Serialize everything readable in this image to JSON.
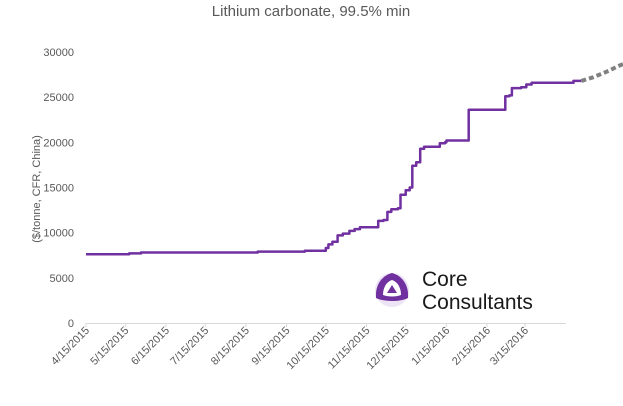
{
  "chart_data": {
    "type": "line",
    "title": "Lithium carbonate, 99.5% min",
    "xlabel": "",
    "ylabel": "($/tonne, CFR, China)",
    "ylim": [
      0,
      30000
    ],
    "y_ticks": [
      "0",
      "5000",
      "10000",
      "15000",
      "20000",
      "25000",
      "30000"
    ],
    "x_ticks": [
      "4/15/2015",
      "5/15/2015",
      "6/15/2015",
      "7/15/2015",
      "8/15/2015",
      "9/15/2015",
      "10/15/2015",
      "11/15/2015",
      "12/15/2015",
      "1/15/2016",
      "2/15/2016",
      "3/15/2016"
    ],
    "grid": false,
    "series": [
      {
        "style": "solid",
        "color": "#7030a0",
        "points": [
          [
            "2015-04-15",
            7600
          ],
          [
            "2015-05-17",
            7600
          ],
          [
            "2015-05-18",
            7700
          ],
          [
            "2015-05-26",
            7700
          ],
          [
            "2015-05-27",
            7800
          ],
          [
            "2015-08-23",
            7800
          ],
          [
            "2015-08-24",
            7900
          ],
          [
            "2015-09-28",
            7900
          ],
          [
            "2015-09-29",
            8000
          ],
          [
            "2015-10-10",
            8000
          ],
          [
            "2015-10-15",
            8300
          ],
          [
            "2015-10-17",
            8700
          ],
          [
            "2015-10-20",
            9000
          ],
          [
            "2015-10-24",
            9700
          ],
          [
            "2015-10-28",
            9900
          ],
          [
            "2015-11-02",
            10200
          ],
          [
            "2015-11-06",
            10400
          ],
          [
            "2015-11-10",
            10600
          ],
          [
            "2015-11-21",
            10600
          ],
          [
            "2015-11-24",
            11300
          ],
          [
            "2015-11-28",
            11400
          ],
          [
            "2015-12-01",
            12300
          ],
          [
            "2015-12-04",
            12600
          ],
          [
            "2015-12-09",
            12700
          ],
          [
            "2015-12-11",
            14200
          ],
          [
            "2015-12-15",
            14700
          ],
          [
            "2015-12-18",
            15000
          ],
          [
            "2015-12-20",
            17400
          ],
          [
            "2015-12-23",
            17800
          ],
          [
            "2015-12-26",
            19300
          ],
          [
            "2015-12-29",
            19500
          ],
          [
            "2016-01-08",
            19500
          ],
          [
            "2016-01-10",
            19900
          ],
          [
            "2016-01-14",
            20000
          ],
          [
            "2016-01-15",
            20200
          ],
          [
            "2016-01-30",
            20200
          ],
          [
            "2016-02-01",
            23600
          ],
          [
            "2016-02-26",
            23600
          ],
          [
            "2016-02-29",
            25100
          ],
          [
            "2016-03-03",
            25200
          ],
          [
            "2016-03-05",
            26000
          ],
          [
            "2016-03-12",
            26100
          ],
          [
            "2016-03-16",
            26400
          ],
          [
            "2016-03-20",
            26600
          ],
          [
            "2016-04-19",
            26600
          ],
          [
            "2016-04-21",
            26800
          ],
          [
            "2016-04-27",
            26800
          ]
        ]
      },
      {
        "style": "dashed",
        "color": "#808080",
        "points": [
          [
            "2016-04-27",
            26800
          ],
          [
            "2016-05-06",
            27200
          ],
          [
            "2016-05-16",
            27800
          ],
          [
            "2016-05-26",
            28500
          ],
          [
            "2016-06-05",
            29100
          ],
          [
            "2016-06-14",
            29500
          ]
        ]
      }
    ]
  },
  "logo": {
    "line1": "Core",
    "line2": "Consultants",
    "color": "#7030a0"
  }
}
